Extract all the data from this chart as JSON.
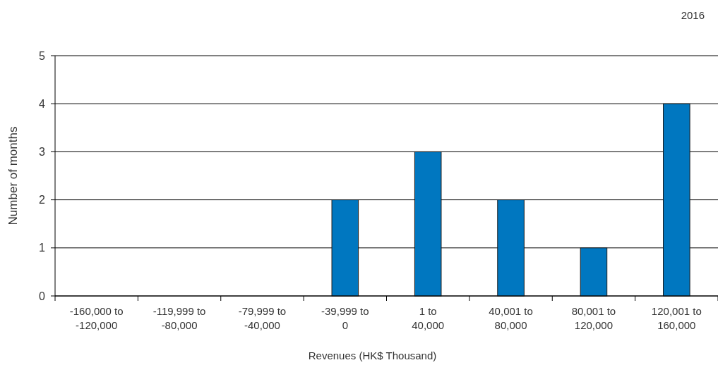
{
  "chart_data": {
    "type": "bar",
    "title": "2016",
    "xlabel": "Revenues (HK$ Thousand)",
    "ylabel": "Number of months",
    "categories": [
      "-160,000 to\n-120,000",
      "-119,999 to\n-80,000",
      "-79,999 to\n-40,000",
      "-39,999 to\n0",
      "1 to\n40,000",
      "40,001 to\n80,000",
      "80,001 to\n120,000",
      "120,001 to\n160,000"
    ],
    "values": [
      0,
      0,
      0,
      2,
      3,
      2,
      1,
      4
    ],
    "color": "#0077c0",
    "ylim": [
      0,
      5
    ],
    "yticks": [
      0,
      1,
      2,
      3,
      4,
      5
    ],
    "grid": "y"
  }
}
